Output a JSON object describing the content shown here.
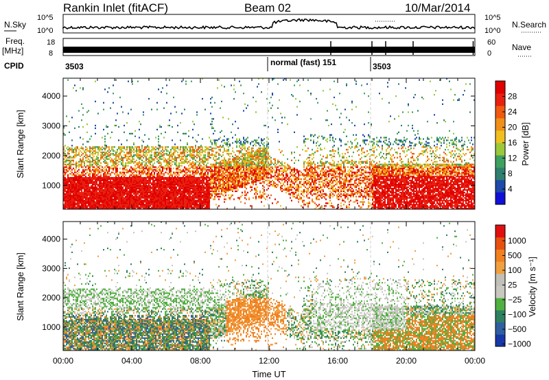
{
  "header": {
    "station": "Rankin Inlet (fitACF)",
    "beam": "Beam 02",
    "date": "10/Mar/2014"
  },
  "summary": {
    "nsky_label": "N.Sky",
    "nsky_ticks": [
      "10^5",
      "10^0"
    ],
    "nsearch_label": "N.Search",
    "nsearch_ticks": [
      "10^5",
      "10^0"
    ],
    "freq_label_1": "Freq.",
    "freq_label_2": "[MHz]",
    "freq_ticks": [
      "18",
      "8"
    ],
    "nave_label": "Nave",
    "nave_ticks": [
      "60",
      "0"
    ],
    "cpid_label": "CPID",
    "cpid_segments": [
      {
        "text": "3503",
        "start_hour": 0
      },
      {
        "text": "normal (fast)  151",
        "start_hour": 12
      },
      {
        "text": "3503",
        "start_hour": 18
      }
    ]
  },
  "chart_data": [
    {
      "type": "heatmap",
      "panel": "power",
      "ylabel": "Slant Range [km]",
      "xlabel": "Time UT",
      "xlim_hours": [
        0,
        24
      ],
      "ylim_km": [
        200,
        4600
      ],
      "x_ticks": [
        "00:00",
        "04:00",
        "08:00",
        "12:00",
        "16:00",
        "20:00",
        "00:00"
      ],
      "y_ticks": [
        "1000",
        "2000",
        "3000",
        "4000"
      ],
      "y_tick_values": [
        1000,
        2000,
        3000,
        4000
      ],
      "colorbar_label": "Power [dB]",
      "colorbar_ticks": [
        "28",
        "24",
        "20",
        "16",
        "12",
        "8",
        "4"
      ],
      "colorbar_values": [
        28,
        24,
        20,
        16,
        12,
        8,
        4
      ],
      "colorbar_range": [
        0,
        32
      ],
      "colors": [
        "#1010d8",
        "#1e4aa8",
        "#2f7f6f",
        "#3fa060",
        "#9cc83a",
        "#f0c020",
        "#f09018",
        "#f05a10",
        "#e82010",
        "#e00000"
      ]
    },
    {
      "type": "heatmap",
      "panel": "velocity",
      "ylabel": "Slant Range [km]",
      "xlabel": "Time UT",
      "xlim_hours": [
        0,
        24
      ],
      "ylim_km": [
        200,
        4600
      ],
      "x_ticks": [
        "00:00",
        "04:00",
        "08:00",
        "12:00",
        "16:00",
        "20:00",
        "00:00"
      ],
      "y_ticks": [
        "1000",
        "2000",
        "3000",
        "4000"
      ],
      "y_tick_values": [
        1000,
        2000,
        3000,
        4000
      ],
      "colorbar_label": "Velocity [m s⁻¹]",
      "colorbar_ticks": [
        "1000",
        "500",
        "100",
        "25",
        "−25",
        "−100",
        "−500",
        "−1000"
      ],
      "colors": [
        "#1838a8",
        "#2f5fa0",
        "#2f8060",
        "#50b040",
        "#c8c8c0",
        "#c0c0b8",
        "#f0a040",
        "#f08020",
        "#e85010",
        "#e01010"
      ]
    }
  ]
}
